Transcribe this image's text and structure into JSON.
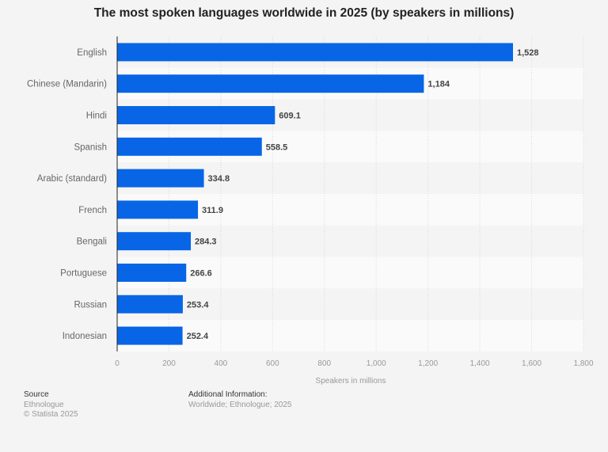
{
  "chart_data": {
    "type": "bar",
    "orientation": "horizontal",
    "title": "The most spoken languages worldwide in 2025 (by speakers in millions)",
    "categories": [
      "English",
      "Chinese (Mandarin)",
      "Hindi",
      "Spanish",
      "Arabic (standard)",
      "French",
      "Bengali",
      "Portuguese",
      "Russian",
      "Indonesian"
    ],
    "values": [
      1528,
      1184,
      609.1,
      558.5,
      334.8,
      311.9,
      284.3,
      266.6,
      253.4,
      252.4
    ],
    "value_labels": [
      "1,528",
      "1,184",
      "609.1",
      "558.5",
      "334.8",
      "311.9",
      "284.3",
      "266.6",
      "253.4",
      "252.4"
    ],
    "xlabel": "Speakers in millions",
    "ylabel": "",
    "xlim": [
      0,
      1800
    ],
    "xticks": [
      0,
      200,
      400,
      600,
      800,
      1000,
      1200,
      1400,
      1600,
      1800
    ],
    "xtick_labels": [
      "0",
      "200",
      "400",
      "600",
      "800",
      "1,000",
      "1,200",
      "1,400",
      "1,600",
      "1,800"
    ],
    "grid": true,
    "bar_color": "#0866e6",
    "legend": "none"
  },
  "footer": {
    "source_heading": "Source",
    "source_lines": [
      "Ethnologue",
      "© Statista 2025"
    ],
    "additional_heading": "Additional Information:",
    "additional_text": "Worldwide; Ethnologue; 2025"
  }
}
